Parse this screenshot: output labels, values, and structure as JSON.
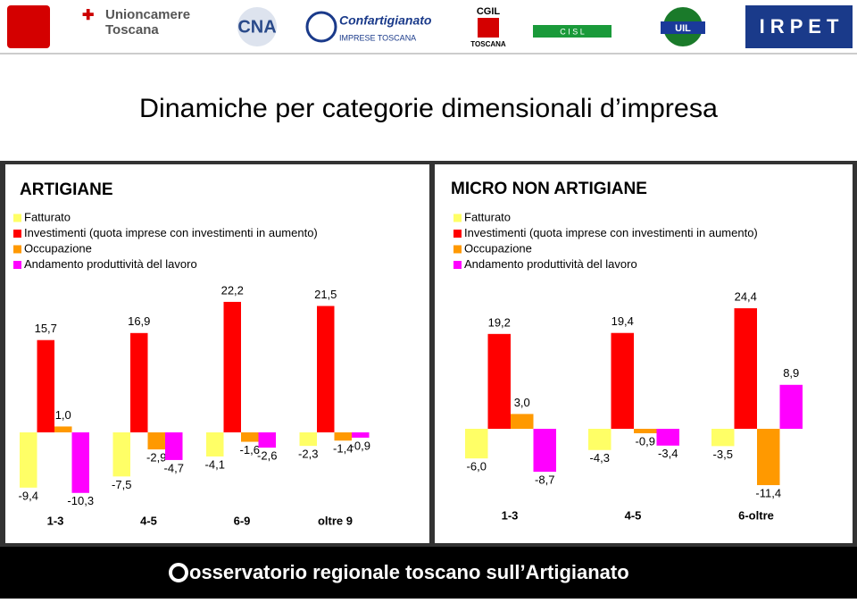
{
  "header": {
    "logos": [
      "Unioncamere",
      "Toscana",
      "CNA",
      "Confartigianato",
      "IMPRESE TOSCANA",
      "CGIL",
      "TOSCANA",
      "C I S L",
      "UIL",
      "I R P E T"
    ],
    "title": "Dinamiche per categorie dimensionali d’impresa"
  },
  "chart_data": [
    {
      "type": "bar",
      "title": "ARTIGIANE",
      "categories": [
        "1-3",
        "4-5",
        "6-9",
        "oltre 9"
      ],
      "series": [
        {
          "name": "Fatturato",
          "color": "#ffff66",
          "values": [
            -9.4,
            -7.5,
            -4.1,
            -2.3
          ],
          "value_labels": [
            "-9,4",
            "-7,5",
            "-4,1",
            "-2,3"
          ]
        },
        {
          "name": "Investimenti (quota imprese con investimenti in aumento)",
          "color": "#ff0000",
          "values": [
            15.7,
            16.9,
            22.2,
            21.5
          ],
          "value_labels": [
            "15,7",
            "16,9",
            "22,2",
            "21,5"
          ]
        },
        {
          "name": "Occupazione",
          "color": "#ff9900",
          "values": [
            1.0,
            -2.9,
            -1.6,
            -1.4
          ],
          "value_labels": [
            "1,0",
            "-2,9",
            "-1,6",
            "-1,4"
          ]
        },
        {
          "name": "Andamento produttività del lavoro",
          "color": "#ff00ff",
          "values": [
            -10.3,
            -4.7,
            -2.6,
            -0.9
          ],
          "value_labels": [
            "-10,3",
            "-4,7",
            "-2,6",
            "-0,9"
          ]
        }
      ]
    },
    {
      "type": "bar",
      "title": "MICRO NON ARTIGIANE",
      "categories": [
        "1-3",
        "4-5",
        "6-oltre"
      ],
      "series": [
        {
          "name": "Fatturato",
          "color": "#ffff66",
          "values": [
            -6.0,
            -4.3,
            -3.5
          ],
          "value_labels": [
            "-6,0",
            "-4,3",
            "-3,5"
          ]
        },
        {
          "name": "Investimenti (quota imprese con investimenti in aumento)",
          "color": "#ff0000",
          "values": [
            19.2,
            19.4,
            24.4
          ],
          "value_labels": [
            "19,2",
            "19,4",
            "24,4"
          ]
        },
        {
          "name": "Occupazione",
          "color": "#ff9900",
          "values": [
            3.0,
            -0.9,
            -11.4
          ],
          "value_labels": [
            "3,0",
            "-0,9",
            "-11,4"
          ]
        },
        {
          "name": "Andamento produttività del lavoro",
          "color": "#ff00ff",
          "values": [
            -8.7,
            -3.4,
            8.9
          ],
          "value_labels": [
            "-8,7",
            "-3,4",
            "8,9"
          ]
        }
      ]
    }
  ],
  "footer": "osservatorio regionale toscano sull’Artigianato"
}
